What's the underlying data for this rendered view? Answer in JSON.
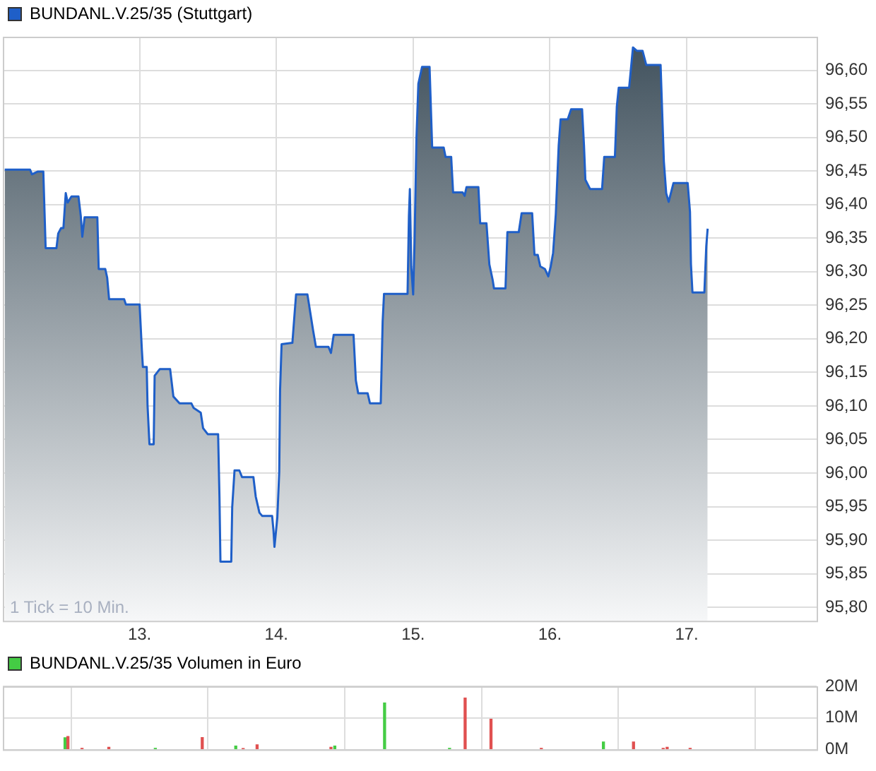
{
  "chart_data": [
    {
      "type": "area",
      "legend": "top left",
      "grid": true,
      "marker": "none",
      "annotations": [
        "1 Tick = 10 Min."
      ],
      "xlim": [
        12,
        17.95
      ],
      "xticks": [
        {
          "value": 13,
          "label": "13."
        },
        {
          "value": 14,
          "label": "14."
        },
        {
          "value": 15,
          "label": "15."
        },
        {
          "value": 16,
          "label": "16."
        },
        {
          "value": 17,
          "label": "17."
        }
      ],
      "ylim": [
        95.78,
        96.65
      ],
      "yticks": [
        {
          "value": 95.8,
          "label": "95,80"
        },
        {
          "value": 95.85,
          "label": "95,85"
        },
        {
          "value": 95.9,
          "label": "95,90"
        },
        {
          "value": 95.95,
          "label": "95,95"
        },
        {
          "value": 96,
          "label": "96,00"
        },
        {
          "value": 96.05,
          "label": "96,05"
        },
        {
          "value": 96.1,
          "label": "96,10"
        },
        {
          "value": 96.15,
          "label": "96,15"
        },
        {
          "value": 96.2,
          "label": "96,20"
        },
        {
          "value": 96.25,
          "label": "96,25"
        },
        {
          "value": 96.3,
          "label": "96,30"
        },
        {
          "value": 96.35,
          "label": "96,35"
        },
        {
          "value": 96.4,
          "label": "96,40"
        },
        {
          "value": 96.45,
          "label": "96,45"
        },
        {
          "value": 96.5,
          "label": "96,50"
        },
        {
          "value": 96.55,
          "label": "96,55"
        },
        {
          "value": 96.6,
          "label": "96,60"
        }
      ],
      "series": [
        {
          "name": "BUNDANL.V.25/35 (Stuttgart)",
          "color": "#1f5fc8",
          "x": [
            12.014,
            12.199,
            12.213,
            12.254,
            12.296,
            12.313,
            12.392,
            12.405,
            12.426,
            12.443,
            12.46,
            12.474,
            12.502,
            12.553,
            12.57,
            12.581,
            12.598,
            12.691,
            12.701,
            12.749,
            12.763,
            12.777,
            12.887,
            12.9,
            13.0,
            13.017,
            13.024,
            13.052,
            13.058,
            13.072,
            13.103,
            13.11,
            13.148,
            13.223,
            13.247,
            13.292,
            13.378,
            13.395,
            13.447,
            13.464,
            13.498,
            13.574,
            13.584,
            13.591,
            13.67,
            13.677,
            13.694,
            13.729,
            13.749,
            13.832,
            13.849,
            13.876,
            13.897,
            13.969,
            13.979,
            13.986,
            14.007,
            14.021,
            14.027,
            14.038,
            14.117,
            14.134,
            14.144,
            14.227,
            14.247,
            14.268,
            14.289,
            14.381,
            14.399,
            14.419,
            14.564,
            14.581,
            14.598,
            14.667,
            14.684,
            14.763,
            14.777,
            14.787,
            14.959,
            14.969,
            14.976,
            14.986,
            15.0,
            15.01,
            15.024,
            15.038,
            15.065,
            15.12,
            15.139,
            15.223,
            15.237,
            15.278,
            15.292,
            15.362,
            15.376,
            15.39,
            15.477,
            15.49,
            15.536,
            15.557,
            15.581,
            15.591,
            15.675,
            15.689,
            15.772,
            15.793,
            15.87,
            15.887,
            15.911,
            15.929,
            15.963,
            15.988,
            16.005,
            16.023,
            16.043,
            16.064,
            16.078,
            16.13,
            16.155,
            16.235,
            16.249,
            16.259,
            16.294,
            16.381,
            16.397,
            16.475,
            16.489,
            16.503,
            16.579,
            16.607,
            16.635,
            16.677,
            16.704,
            16.809,
            16.833,
            16.85,
            16.868,
            16.903,
            17.007,
            17.024,
            17.031,
            17.042,
            17.129,
            17.143,
            17.153
          ],
          "values": [
            96.452,
            96.452,
            96.445,
            96.449,
            96.449,
            96.335,
            96.335,
            96.357,
            96.365,
            96.365,
            96.417,
            96.403,
            96.412,
            96.412,
            96.383,
            96.352,
            96.381,
            96.381,
            96.304,
            96.304,
            96.291,
            96.259,
            96.259,
            96.251,
            96.251,
            96.182,
            96.158,
            96.158,
            96.101,
            96.043,
            96.043,
            96.145,
            96.155,
            96.155,
            96.114,
            96.104,
            96.104,
            96.097,
            96.09,
            96.067,
            96.058,
            96.058,
            95.963,
            95.868,
            95.868,
            95.949,
            96.004,
            96.004,
            95.994,
            95.994,
            95.965,
            95.941,
            95.936,
            95.936,
            95.914,
            95.89,
            95.934,
            96.002,
            96.124,
            96.192,
            96.194,
            96.24,
            96.266,
            96.266,
            96.24,
            96.213,
            96.188,
            96.188,
            96.179,
            96.206,
            96.206,
            96.138,
            96.119,
            96.119,
            96.104,
            96.104,
            96.226,
            96.267,
            96.267,
            96.383,
            96.423,
            96.308,
            96.266,
            96.342,
            96.498,
            96.58,
            96.605,
            96.605,
            96.485,
            96.485,
            96.471,
            96.471,
            96.418,
            96.418,
            96.413,
            96.426,
            96.426,
            96.372,
            96.372,
            96.311,
            96.288,
            96.275,
            96.275,
            96.359,
            96.359,
            96.387,
            96.387,
            96.325,
            96.325,
            96.308,
            96.304,
            96.293,
            96.307,
            96.328,
            96.386,
            96.488,
            96.527,
            96.527,
            96.542,
            96.542,
            96.488,
            96.437,
            96.423,
            96.423,
            96.471,
            96.471,
            96.546,
            96.574,
            96.574,
            96.634,
            96.629,
            96.629,
            96.608,
            96.608,
            96.464,
            96.417,
            96.404,
            96.432,
            96.432,
            96.389,
            96.311,
            96.269,
            96.269,
            96.338,
            96.364
          ]
        }
      ]
    },
    {
      "type": "bar",
      "legend": "top left",
      "grid": true,
      "tick_labels": "y",
      "xlim": [
        12,
        17.95
      ],
      "xticks": [
        13,
        14,
        15,
        16,
        17
      ],
      "ylim": [
        0,
        20
      ],
      "yticks": [
        {
          "value": 0,
          "label": "0M"
        },
        {
          "value": 10,
          "label": "10M"
        },
        {
          "value": 20,
          "label": "20M"
        }
      ],
      "series": [
        {
          "name": "BUNDANL.V.25/35 Volumen in Euro",
          "x": [
            12.455,
            12.476,
            12.579,
            12.775,
            13.115,
            13.458,
            13.703,
            13.757,
            13.859,
            14.399,
            14.427,
            14.791,
            15.266,
            15.38,
            15.569,
            15.937,
            16.391,
            16.611,
            16.828,
            16.857,
            17.025
          ],
          "values": [
            3.7,
            4.1,
            0.4,
            0.7,
            0.4,
            3.8,
            1.1,
            0.3,
            1.5,
            0.7,
            1.1,
            14.7,
            0.4,
            16.3,
            9.6,
            0.4,
            2.4,
            2.4,
            0.4,
            0.7,
            0.4
          ],
          "colors": [
            "#44cc44",
            "#e05050",
            "#e05050",
            "#e05050",
            "#44cc44",
            "#e05050",
            "#44cc44",
            "#e05050",
            "#e05050",
            "#e05050",
            "#44cc44",
            "#44cc44",
            "#44cc44",
            "#e05050",
            "#e05050",
            "#e05050",
            "#44cc44",
            "#e05050",
            "#e05050",
            "#e05050",
            "#e05050"
          ]
        }
      ]
    }
  ]
}
